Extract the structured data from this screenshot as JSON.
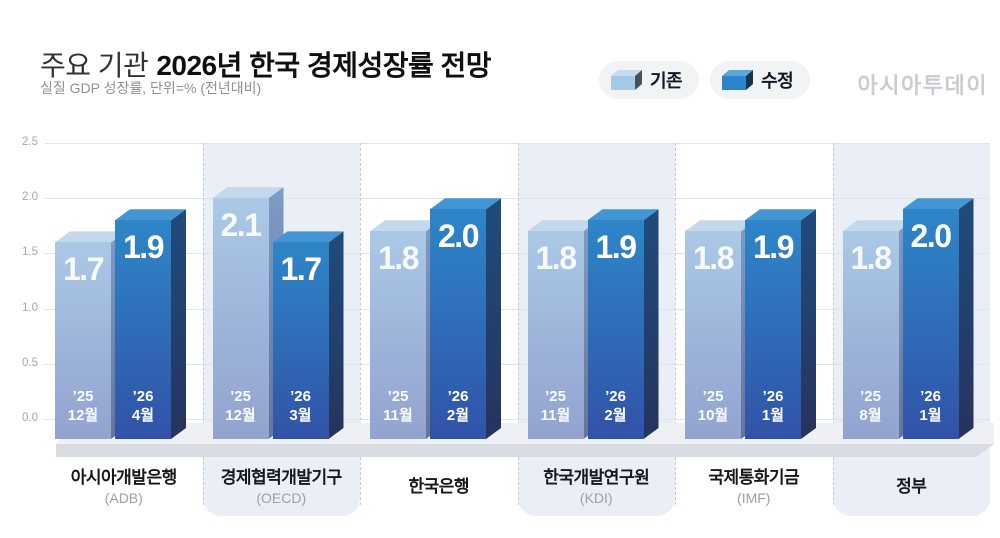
{
  "header": {
    "title_prefix": "주요 기관",
    "title_main": "2026년 한국 경제성장률 전망",
    "subtitle": "실질 GDP 성장률, 단위=% (전년대비)",
    "logo": "아시아투데이"
  },
  "legend": {
    "items": [
      {
        "label": "기존",
        "front": "#a6c9e8",
        "top": "#c6dcf0",
        "side": "#47525f"
      },
      {
        "label": "수정",
        "front": "#2a86c8",
        "top": "#5aa7da",
        "side": "#16334f"
      }
    ]
  },
  "chart_data": {
    "type": "bar",
    "title": "주요 기관 2026년 한국 경제성장률 전망",
    "subtitle": "실질 GDP 성장률, 단위=% (전년대비)",
    "unit": "%",
    "ylim": [
      0,
      2.5
    ],
    "grid": true,
    "legend_position": "top-right",
    "series_names": [
      "기존",
      "수정"
    ],
    "yticks": [
      {
        "v": 0.0,
        "label": "0.0"
      },
      {
        "v": 0.5,
        "label": "0.5"
      },
      {
        "v": 1.0,
        "label": "1.0"
      },
      {
        "v": 1.5,
        "label": "1.5"
      },
      {
        "v": 2.0,
        "label": "2.0"
      },
      {
        "v": 2.5,
        "label": "2.5"
      }
    ],
    "groups": [
      {
        "institution": "아시아개발은행",
        "acronym": "(ADB)",
        "band": false,
        "bars": [
          {
            "series": "기존",
            "year": "’25",
            "month": "12월",
            "value": 1.7,
            "value_label": "1.7"
          },
          {
            "series": "수정",
            "year": "’26",
            "month": "4월",
            "value": 1.9,
            "value_label": "1.9"
          }
        ]
      },
      {
        "institution": "경제협력개발기구",
        "acronym": "(OECD)",
        "band": true,
        "bars": [
          {
            "series": "기존",
            "year": "’25",
            "month": "12월",
            "value": 2.1,
            "value_label": "2.1"
          },
          {
            "series": "수정",
            "year": "’26",
            "month": "3월",
            "value": 1.7,
            "value_label": "1.7"
          }
        ]
      },
      {
        "institution": "한국은행",
        "acronym": "",
        "band": false,
        "bars": [
          {
            "series": "기존",
            "year": "’25",
            "month": "11월",
            "value": 1.8,
            "value_label": "1.8"
          },
          {
            "series": "수정",
            "year": "’26",
            "month": "2월",
            "value": 2.0,
            "value_label": "2.0"
          }
        ]
      },
      {
        "institution": "한국개발연구원",
        "acronym": "(KDI)",
        "band": true,
        "bars": [
          {
            "series": "기존",
            "year": "’25",
            "month": "11월",
            "value": 1.8,
            "value_label": "1.8"
          },
          {
            "series": "수정",
            "year": "’26",
            "month": "2월",
            "value": 1.9,
            "value_label": "1.9"
          }
        ]
      },
      {
        "institution": "국제통화기금",
        "acronym": "(IMF)",
        "band": false,
        "bars": [
          {
            "series": "기존",
            "year": "’25",
            "month": "10월",
            "value": 1.8,
            "value_label": "1.8"
          },
          {
            "series": "수정",
            "year": "’26",
            "month": "1월",
            "value": 1.9,
            "value_label": "1.9"
          }
        ]
      },
      {
        "institution": "정부",
        "acronym": "",
        "band": true,
        "bars": [
          {
            "series": "기존",
            "year": "’25",
            "month": "8월",
            "value": 1.8,
            "value_label": "1.8"
          },
          {
            "series": "수정",
            "year": "’26",
            "month": "1월",
            "value": 2.0,
            "value_label": "2.0"
          }
        ]
      }
    ]
  }
}
